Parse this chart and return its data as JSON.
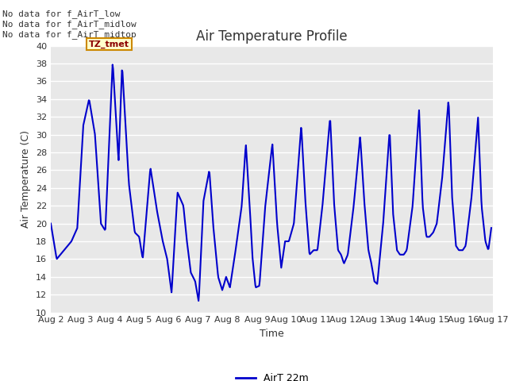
{
  "title": "Air Temperature Profile",
  "xlabel": "Time",
  "ylabel": "Air Temperature (C)",
  "ylim": [
    10,
    40
  ],
  "xlim_days": [
    2,
    17
  ],
  "xtick_labels": [
    "Aug 2",
    "Aug 3",
    "Aug 4",
    "Aug 5",
    "Aug 6",
    "Aug 7",
    "Aug 8",
    "Aug 9",
    "Aug 10",
    "Aug 11",
    "Aug 12",
    "Aug 13",
    "Aug 14",
    "Aug 15",
    "Aug 16",
    "Aug 17"
  ],
  "line_color": "#0000cc",
  "line_width": 1.5,
  "fig_bg_color": "#ffffff",
  "ax_bg_color": "#e8e8e8",
  "legend_label": "AirT 22m",
  "nodata_texts": [
    "No data for f_AirT_low",
    "No data for f_AirT_midlow",
    "No data for f_AirT_midtop"
  ],
  "tz_label": "TZ_tmet",
  "title_fontsize": 12,
  "axis_fontsize": 9,
  "tick_fontsize": 8,
  "nodata_fontsize": 8,
  "yticks": [
    10,
    12,
    14,
    16,
    18,
    20,
    22,
    24,
    26,
    28,
    30,
    32,
    34,
    36,
    38,
    40
  ],
  "key_points": [
    [
      2.0,
      20.0
    ],
    [
      2.2,
      16.0
    ],
    [
      2.7,
      18.0
    ],
    [
      2.9,
      19.5
    ],
    [
      3.1,
      31.0
    ],
    [
      3.3,
      34.0
    ],
    [
      3.5,
      30.0
    ],
    [
      3.7,
      20.0
    ],
    [
      3.85,
      19.2
    ],
    [
      4.1,
      38.2
    ],
    [
      4.3,
      27.0
    ],
    [
      4.42,
      37.8
    ],
    [
      4.65,
      24.5
    ],
    [
      4.85,
      19.0
    ],
    [
      5.0,
      18.5
    ],
    [
      5.12,
      16.0
    ],
    [
      5.38,
      26.3
    ],
    [
      5.6,
      21.5
    ],
    [
      5.8,
      18.0
    ],
    [
      5.95,
      16.0
    ],
    [
      6.1,
      12.2
    ],
    [
      6.3,
      23.5
    ],
    [
      6.5,
      22.0
    ],
    [
      6.62,
      18.0
    ],
    [
      6.75,
      14.5
    ],
    [
      6.9,
      13.5
    ],
    [
      7.02,
      11.2
    ],
    [
      7.18,
      22.5
    ],
    [
      7.38,
      26.0
    ],
    [
      7.52,
      19.5
    ],
    [
      7.68,
      14.0
    ],
    [
      7.82,
      12.5
    ],
    [
      7.95,
      14.0
    ],
    [
      8.08,
      12.8
    ],
    [
      8.25,
      16.5
    ],
    [
      8.48,
      22.0
    ],
    [
      8.62,
      29.0
    ],
    [
      8.75,
      22.0
    ],
    [
      8.85,
      16.0
    ],
    [
      8.95,
      12.8
    ],
    [
      9.08,
      13.0
    ],
    [
      9.28,
      22.0
    ],
    [
      9.52,
      29.0
    ],
    [
      9.68,
      20.0
    ],
    [
      9.82,
      15.0
    ],
    [
      9.95,
      18.0
    ],
    [
      10.08,
      18.0
    ],
    [
      10.25,
      20.0
    ],
    [
      10.5,
      31.0
    ],
    [
      10.65,
      22.0
    ],
    [
      10.78,
      16.5
    ],
    [
      10.92,
      17.0
    ],
    [
      11.05,
      17.0
    ],
    [
      11.22,
      22.0
    ],
    [
      11.48,
      32.0
    ],
    [
      11.62,
      22.0
    ],
    [
      11.75,
      17.0
    ],
    [
      11.85,
      16.5
    ],
    [
      11.95,
      15.5
    ],
    [
      12.08,
      16.5
    ],
    [
      12.28,
      22.0
    ],
    [
      12.5,
      29.8
    ],
    [
      12.65,
      22.0
    ],
    [
      12.78,
      17.0
    ],
    [
      12.88,
      15.5
    ],
    [
      12.98,
      13.5
    ],
    [
      13.08,
      13.2
    ],
    [
      13.28,
      20.0
    ],
    [
      13.5,
      30.5
    ],
    [
      13.62,
      21.0
    ],
    [
      13.75,
      17.0
    ],
    [
      13.85,
      16.5
    ],
    [
      13.98,
      16.5
    ],
    [
      14.08,
      17.0
    ],
    [
      14.28,
      22.0
    ],
    [
      14.5,
      32.8
    ],
    [
      14.62,
      22.0
    ],
    [
      14.75,
      18.5
    ],
    [
      14.85,
      18.5
    ],
    [
      14.98,
      19.0
    ],
    [
      15.1,
      20.0
    ],
    [
      15.28,
      25.0
    ],
    [
      15.5,
      34.0
    ],
    [
      15.62,
      23.0
    ],
    [
      15.75,
      17.5
    ],
    [
      15.85,
      17.0
    ],
    [
      15.98,
      17.0
    ],
    [
      16.08,
      17.5
    ],
    [
      16.28,
      23.0
    ],
    [
      16.5,
      32.0
    ],
    [
      16.62,
      22.0
    ],
    [
      16.75,
      18.0
    ],
    [
      16.85,
      17.0
    ],
    [
      16.95,
      19.5
    ]
  ]
}
